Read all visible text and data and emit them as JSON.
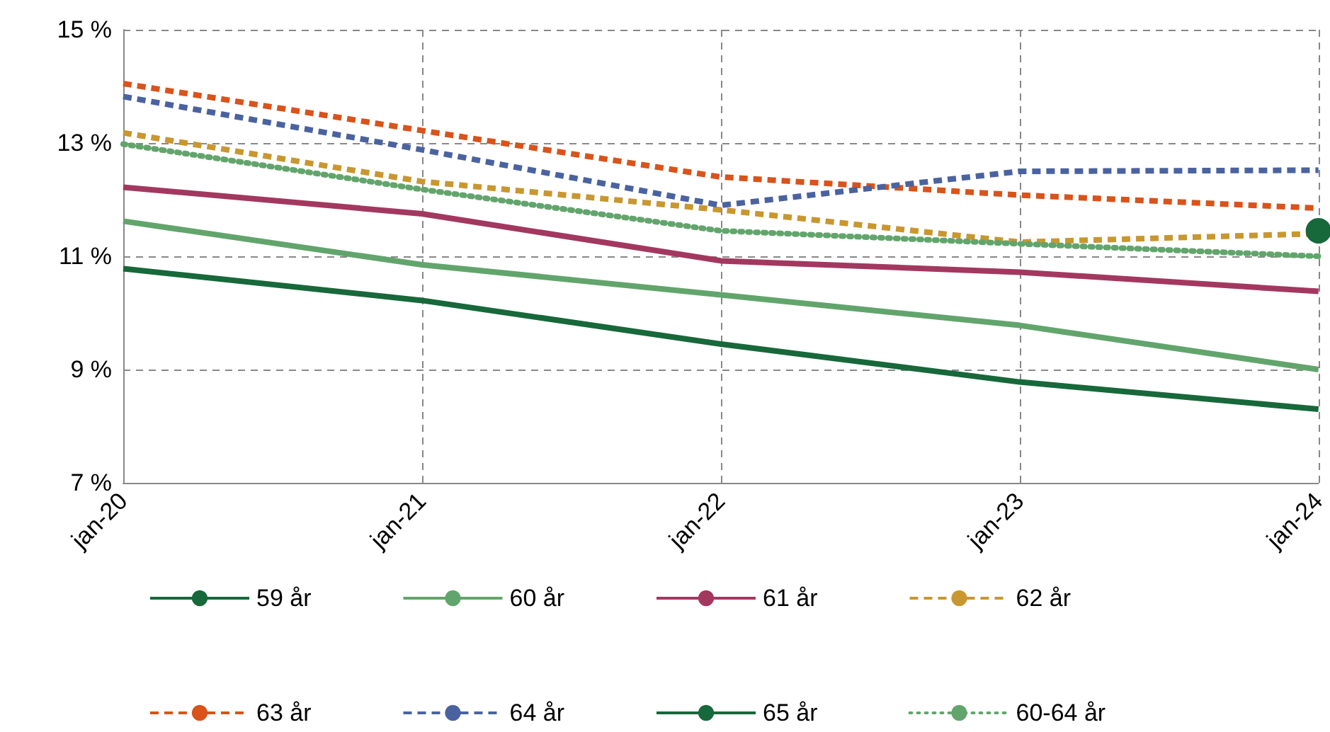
{
  "chart_data": {
    "type": "line",
    "categories": [
      "jan-20",
      "jan-21",
      "jan-22",
      "jan-23",
      "jan-24"
    ],
    "series": [
      {
        "name": "59 år",
        "color": "#17683a",
        "line_style": "solid",
        "marker": "none",
        "values": [
          10.78,
          10.22,
          9.45,
          8.78,
          8.3
        ]
      },
      {
        "name": "60 år",
        "color": "#62a56c",
        "line_style": "solid",
        "marker": "none",
        "values": [
          11.62,
          10.85,
          10.32,
          9.78,
          9.0
        ]
      },
      {
        "name": "61 år",
        "color": "#a3385f",
        "line_style": "solid",
        "marker": "none",
        "values": [
          12.22,
          11.75,
          10.92,
          10.72,
          10.38
        ]
      },
      {
        "name": "62 år",
        "color": "#c9972f",
        "line_style": "dashed",
        "marker": "none",
        "values": [
          13.18,
          12.32,
          11.82,
          11.25,
          11.4
        ]
      },
      {
        "name": "63 år",
        "color": "#d9531b",
        "line_style": "dashed",
        "marker": "none",
        "values": [
          14.05,
          13.22,
          12.4,
          12.08,
          11.85
        ]
      },
      {
        "name": "64 år",
        "color": "#4a63a0",
        "line_style": "dashed",
        "marker": "none",
        "values": [
          13.82,
          12.88,
          11.9,
          12.5,
          12.52
        ]
      },
      {
        "name": "65 år",
        "color": "#17683a",
        "line_style": "solid",
        "marker": "circle",
        "values": [
          null,
          null,
          null,
          null,
          11.45
        ]
      },
      {
        "name": "60-64 år",
        "color": "#62a56c",
        "line_style": "dotted",
        "marker": "none",
        "values": [
          12.98,
          12.18,
          11.45,
          11.22,
          11.0
        ]
      }
    ],
    "ylim": [
      7,
      15
    ],
    "yticks": [
      {
        "value": 7,
        "label": "7 %"
      },
      {
        "value": 9,
        "label": "9 %"
      },
      {
        "value": 11,
        "label": "11 %"
      },
      {
        "value": 13,
        "label": "13 %"
      },
      {
        "value": 15,
        "label": "15 %"
      }
    ],
    "grid": true,
    "legend": "bottom"
  }
}
